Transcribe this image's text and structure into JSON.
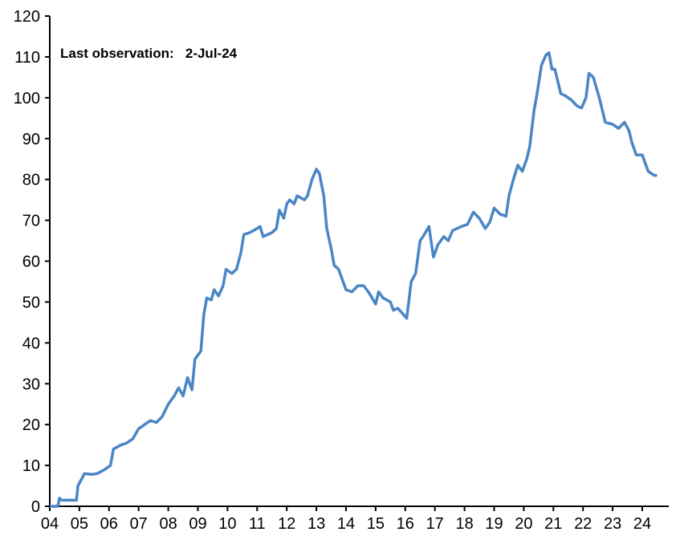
{
  "chart_data": {
    "type": "line",
    "title": "",
    "xlabel": "",
    "ylabel": "",
    "annotation": "Last observation:   2-Jul-24",
    "xlim": [
      2004,
      2024.5
    ],
    "ylim": [
      0,
      120
    ],
    "yticks": [
      0,
      10,
      20,
      30,
      40,
      50,
      60,
      70,
      80,
      90,
      100,
      110,
      120
    ],
    "xtick_labels": [
      "04",
      "05",
      "06",
      "07",
      "08",
      "09",
      "10",
      "11",
      "12",
      "13",
      "14",
      "15",
      "16",
      "17",
      "18",
      "19",
      "20",
      "21",
      "22",
      "23",
      "24"
    ],
    "grid": false,
    "line_color": "#4a86c5",
    "series": [
      {
        "x": [
          2004.0,
          2004.27,
          2004.33,
          2004.4,
          2004.9,
          2004.95,
          2005.17,
          2005.4,
          2005.6,
          2005.85,
          2006.05,
          2006.15,
          2006.4,
          2006.6,
          2006.8,
          2007.0,
          2007.2,
          2007.4,
          2007.6,
          2007.8,
          2008.0,
          2008.2,
          2008.35,
          2008.5,
          2008.65,
          2008.8,
          2008.9,
          2009.1,
          2009.2,
          2009.3,
          2009.45,
          2009.55,
          2009.7,
          2009.85,
          2009.95,
          2010.15,
          2010.3,
          2010.45,
          2010.55,
          2010.75,
          2011.0,
          2011.1,
          2011.2,
          2011.5,
          2011.65,
          2011.75,
          2011.9,
          2012.0,
          2012.1,
          2012.25,
          2012.35,
          2012.6,
          2012.7,
          2012.85,
          2013.0,
          2013.1,
          2013.25,
          2013.35,
          2013.5,
          2013.6,
          2013.75,
          2013.9,
          2014.0,
          2014.2,
          2014.4,
          2014.6,
          2014.8,
          2015.0,
          2015.1,
          2015.25,
          2015.5,
          2015.6,
          2015.75,
          2016.05,
          2016.2,
          2016.35,
          2016.5,
          2016.6,
          2016.8,
          2016.95,
          2017.1,
          2017.3,
          2017.45,
          2017.6,
          2017.9,
          2018.1,
          2018.3,
          2018.5,
          2018.7,
          2018.85,
          2019.0,
          2019.2,
          2019.4,
          2019.5,
          2019.65,
          2019.8,
          2019.95,
          2020.1,
          2020.2,
          2020.35,
          2020.45,
          2020.6,
          2020.75,
          2020.85,
          2020.95,
          2021.05,
          2021.25,
          2021.4,
          2021.6,
          2021.8,
          2021.95,
          2022.1,
          2022.2,
          2022.35,
          2022.55,
          2022.75,
          2023.0,
          2023.2,
          2023.4,
          2023.55,
          2023.65,
          2023.8,
          2024.0,
          2024.2,
          2024.4,
          2024.5
        ],
        "values": [
          0,
          0,
          2,
          1.5,
          1.5,
          5,
          8,
          7.8,
          8,
          9,
          10,
          14,
          15,
          15.5,
          16.5,
          19,
          20,
          21,
          20.5,
          22,
          25,
          27,
          29,
          27,
          31.5,
          28.5,
          36,
          38,
          47,
          51,
          50.5,
          53,
          51.5,
          54,
          58,
          57,
          58,
          62,
          66.5,
          67,
          68,
          68.5,
          66,
          67,
          68,
          72.5,
          70.5,
          74,
          75,
          74,
          76,
          75,
          76,
          80,
          82.5,
          81.5,
          76,
          68,
          63,
          59,
          58,
          55,
          53,
          52.5,
          54,
          54,
          52,
          49.5,
          52.5,
          51,
          50,
          48,
          48.5,
          46,
          55,
          57,
          65,
          66,
          68.5,
          61,
          64,
          66,
          65,
          67.5,
          68.5,
          69,
          72,
          70.5,
          68,
          69.5,
          73,
          71.5,
          71,
          76,
          80,
          83.5,
          82,
          85,
          88,
          97,
          101,
          108,
          110.5,
          111,
          107,
          107,
          101,
          100.5,
          99.5,
          98,
          97.5,
          100,
          106,
          105,
          100,
          94,
          93.5,
          92.5,
          94,
          92,
          89,
          86,
          86,
          82,
          81,
          81
        ]
      }
    ]
  }
}
